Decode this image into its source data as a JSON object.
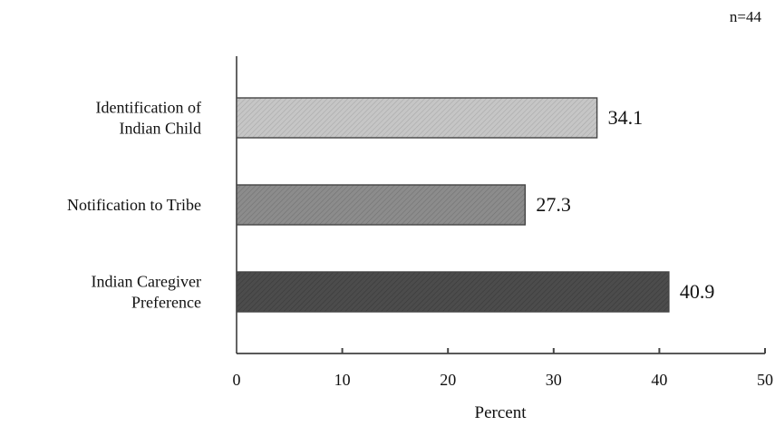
{
  "chart_data": {
    "type": "bar",
    "orientation": "horizontal",
    "annotation": "n=44",
    "categories": [
      [
        "Identification of",
        "Indian Child"
      ],
      [
        "Notification to Tribe"
      ],
      [
        "Indian Caregiver",
        "Preference"
      ]
    ],
    "values": [
      34.1,
      27.3,
      40.9
    ],
    "value_labels": [
      "34.1",
      "27.3",
      "40.9"
    ],
    "xlabel": "Percent",
    "ylabel": "",
    "xlim": [
      0,
      50
    ],
    "xticks": [
      0,
      10,
      20,
      30,
      40,
      50
    ],
    "grid": false,
    "legend": "none",
    "bar_colors": [
      "#c4c4c4",
      "#8a8a8a",
      "#4a4a4a"
    ],
    "bar_edge_color": "#444444"
  }
}
